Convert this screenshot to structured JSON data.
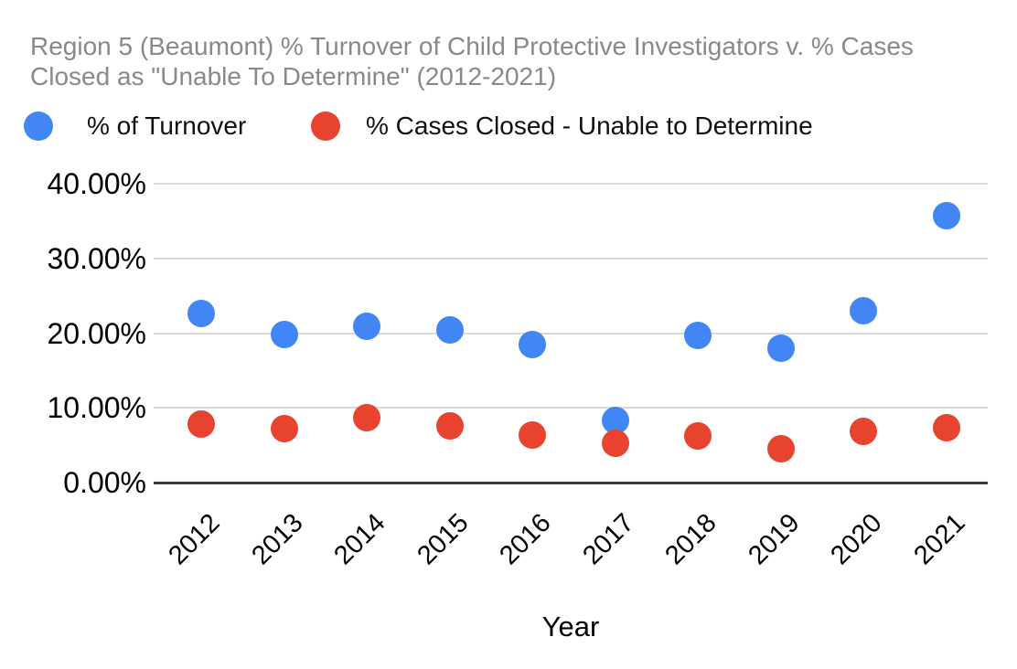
{
  "title": {
    "line1": "Region 5 (Beaumont) % Turnover of Child Protective Investigators v. % Cases",
    "line2": "Closed as \"Unable To Determine\" (2012-2021)"
  },
  "legend": {
    "items": [
      {
        "label": "% of Turnover",
        "color": "#4285f4"
      },
      {
        "label": "% Cases Closed - Unable to Determine",
        "color": "#e8432e"
      }
    ]
  },
  "chart_data": {
    "type": "scatter",
    "title": "Region 5 (Beaumont) % Turnover of Child Protective Investigators v. % Cases Closed as \"Unable To Determine\" (2012-2021)",
    "categories": [
      "2012",
      "2013",
      "2014",
      "2015",
      "2016",
      "2017",
      "2018",
      "2019",
      "2020",
      "2021"
    ],
    "series": [
      {
        "name": "% of Turnover",
        "color": "#4285f4",
        "values": [
          22.6,
          19.8,
          20.9,
          20.4,
          18.5,
          8.3,
          19.7,
          18.0,
          23.0,
          35.7
        ]
      },
      {
        "name": "% Cases Closed - Unable to Determine",
        "color": "#e8432e",
        "values": [
          7.8,
          7.2,
          8.7,
          7.6,
          6.3,
          5.3,
          6.2,
          4.5,
          6.8,
          7.3
        ]
      }
    ],
    "xlabel": "Year",
    "ylabel": "",
    "ylim": [
      0,
      40
    ],
    "yticks": [
      {
        "value": 0,
        "label": "0.00%"
      },
      {
        "value": 10,
        "label": "10.00%"
      },
      {
        "value": 20,
        "label": "20.00%"
      },
      {
        "value": 30,
        "label": "30.00%"
      },
      {
        "value": 40,
        "label": "40.00%"
      }
    ],
    "grid": "horizontal",
    "legend_position": "top",
    "x_tick_rotation_deg": 45
  }
}
